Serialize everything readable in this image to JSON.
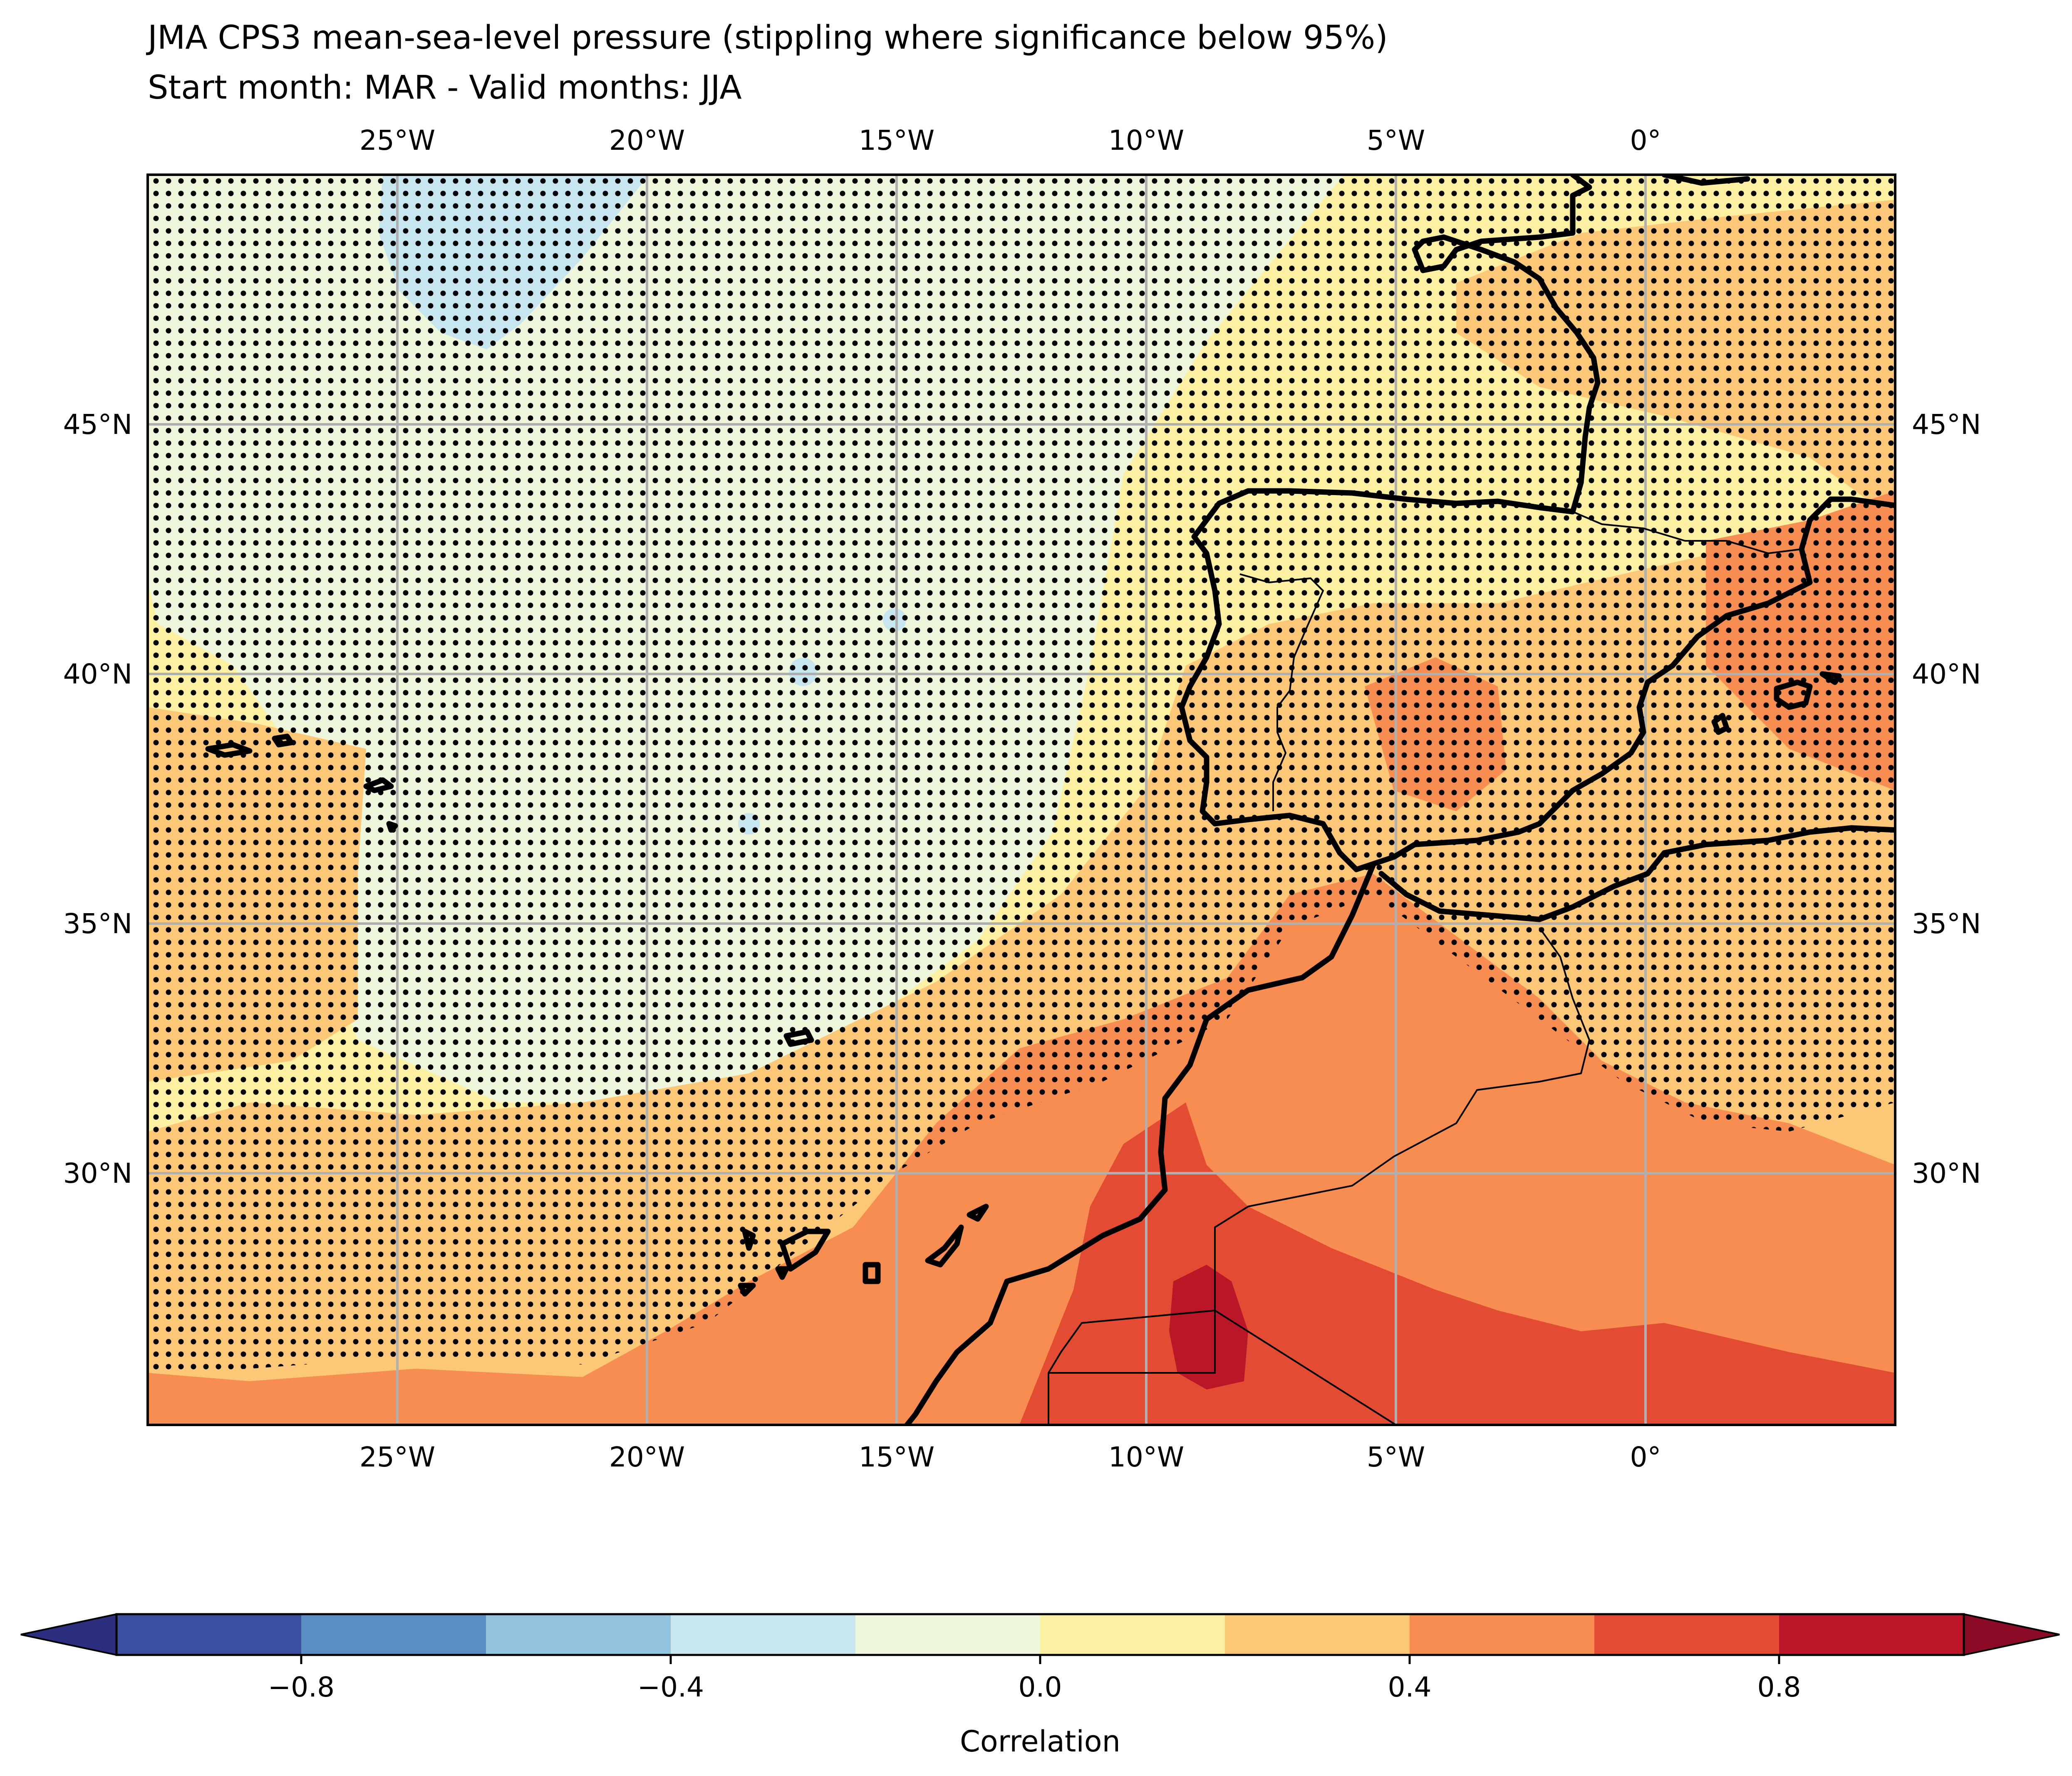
{
  "title": {
    "line1": "JMA CPS3 mean-sea-level pressure (stippling where significance below 95%)",
    "line2": "Start month: MAR - Valid months: JJA"
  },
  "map": {
    "extent_lon": [
      -30,
      5
    ],
    "extent_lat": [
      25,
      50
    ],
    "lon_ticks": [
      {
        "value": -25,
        "label": "25°W"
      },
      {
        "value": -20,
        "label": "20°W"
      },
      {
        "value": -15,
        "label": "15°W"
      },
      {
        "value": -10,
        "label": "10°W"
      },
      {
        "value": -5,
        "label": "5°W"
      },
      {
        "value": 0,
        "label": "0°"
      }
    ],
    "lat_ticks": [
      {
        "value": 45,
        "label": "45°N"
      },
      {
        "value": 40,
        "label": "40°N"
      },
      {
        "value": 35,
        "label": "35°N"
      },
      {
        "value": 30,
        "label": "30°N"
      }
    ],
    "gridlines": true,
    "stippling": "significance below 95%"
  },
  "colorbar": {
    "label": "Correlation",
    "levels": [
      -1.0,
      -0.8,
      -0.6,
      -0.4,
      -0.2,
      0.0,
      0.2,
      0.4,
      0.6,
      0.8,
      1.0
    ],
    "colors": [
      "#3b4fa0",
      "#5b8fc4",
      "#93c4de",
      "#c7e6f0",
      "#eef6dc",
      "#fdf0a3",
      "#fcc777",
      "#f88d52",
      "#e34b33",
      "#bb1628"
    ],
    "extend_low_color": "#2c2f80",
    "extend_high_color": "#8b0b26",
    "tick_labels": [
      {
        "value": -0.8,
        "label": "−0.8"
      },
      {
        "value": -0.4,
        "label": "−0.4"
      },
      {
        "value": 0.0,
        "label": "0.0"
      },
      {
        "value": 0.4,
        "label": "0.4"
      },
      {
        "value": 0.8,
        "label": "0.8"
      }
    ]
  }
}
